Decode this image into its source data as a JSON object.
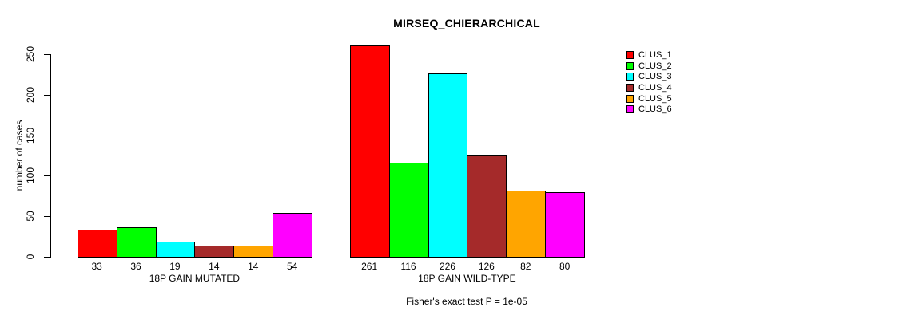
{
  "chart_data": {
    "type": "bar",
    "title": "MIRSEQ_CHIERARCHICAL",
    "ylabel": "number of cases",
    "xlabel": "",
    "ylim": [
      0,
      250
    ],
    "yticks": [
      0,
      50,
      100,
      150,
      200,
      250
    ],
    "grid": false,
    "legend_position": "right",
    "categories": [
      "CLUS_1",
      "CLUS_2",
      "CLUS_3",
      "CLUS_4",
      "CLUS_5",
      "CLUS_6"
    ],
    "colors": [
      "#FF0000",
      "#00FF00",
      "#00FFFF",
      "#A52A2A",
      "#FFA500",
      "#FF00FF"
    ],
    "groups": [
      {
        "label": "18P GAIN MUTATED",
        "values": [
          33,
          36,
          19,
          14,
          14,
          54
        ]
      },
      {
        "label": "18P GAIN WILD-TYPE",
        "values": [
          261,
          116,
          226,
          126,
          82,
          80
        ]
      }
    ],
    "caption": "Fisher's exact test P = 1e-05"
  }
}
